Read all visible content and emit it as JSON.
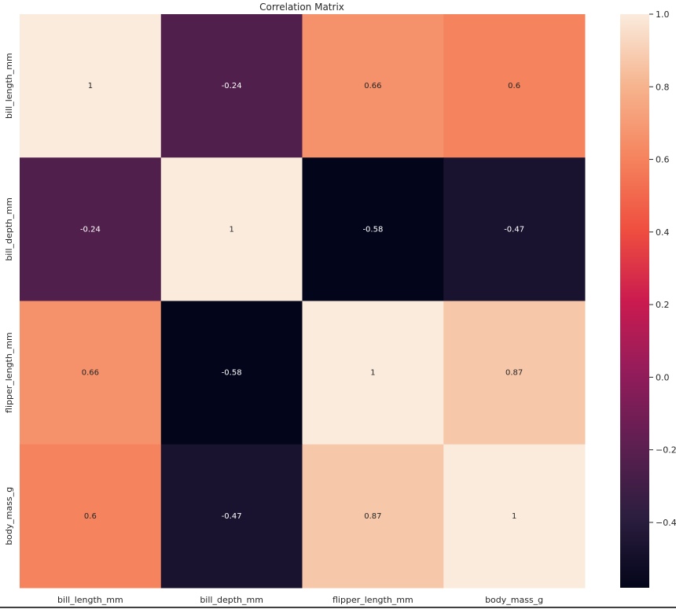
{
  "chart_data": {
    "type": "heatmap",
    "title": "Correlation Matrix",
    "x_labels": [
      "bill_length_mm",
      "bill_depth_mm",
      "flipper_length_mm",
      "body_mass_g"
    ],
    "y_labels": [
      "bill_length_mm",
      "bill_depth_mm",
      "flipper_length_mm",
      "body_mass_g"
    ],
    "values": [
      [
        1,
        -0.24,
        0.66,
        0.6
      ],
      [
        -0.24,
        1,
        -0.58,
        -0.47
      ],
      [
        0.66,
        -0.58,
        1,
        0.87
      ],
      [
        0.6,
        -0.47,
        0.87,
        1
      ]
    ],
    "cell_text": [
      [
        "1",
        "-0.24",
        "0.66",
        "0.6"
      ],
      [
        "-0.24",
        "1",
        "-0.58",
        "-0.47"
      ],
      [
        "0.66",
        "-0.58",
        "1",
        "0.87"
      ],
      [
        "0.6",
        "-0.47",
        "0.87",
        "1"
      ]
    ],
    "colormap": "rocket",
    "vmin": -0.58,
    "vmax": 1.0,
    "colorbar": {
      "ticks": [
        1.0,
        0.8,
        0.6,
        0.4,
        0.2,
        0.0,
        -0.2,
        -0.4
      ],
      "tick_labels": [
        "1.0",
        "0.8",
        "0.6",
        "0.4",
        "0.2",
        "0.0",
        "−0.2",
        "−0.4"
      ]
    },
    "grid": false
  }
}
